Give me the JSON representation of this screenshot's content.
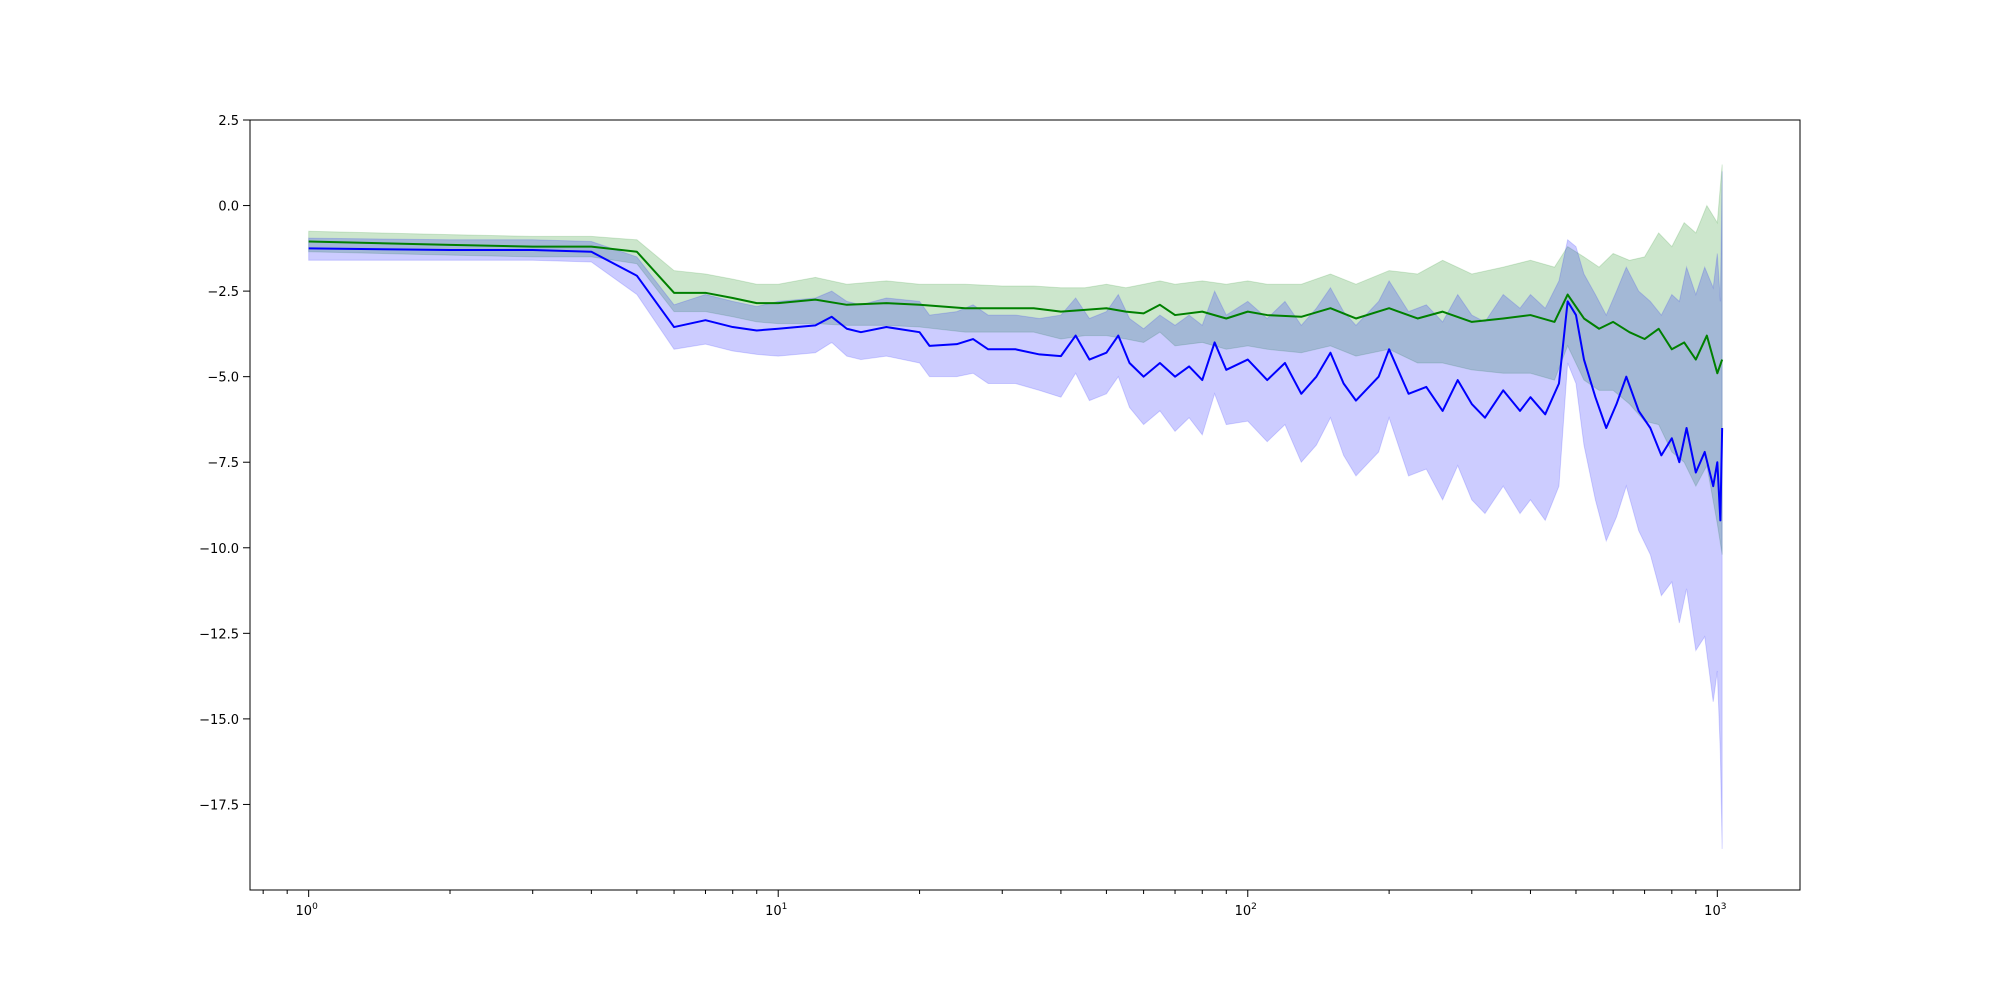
{
  "chart_data": {
    "type": "line",
    "title": "",
    "xlabel": "",
    "ylabel": "",
    "xscale": "log",
    "xlim": [
      0.75,
      1500
    ],
    "ylim": [
      -20,
      2.5
    ],
    "grid": false,
    "legend": "none",
    "x_ticks": [
      {
        "base": "10",
        "exp": "0",
        "value": 1
      },
      {
        "base": "10",
        "exp": "1",
        "value": 10
      },
      {
        "base": "10",
        "exp": "2",
        "value": 100
      },
      {
        "base": "10",
        "exp": "3",
        "value": 1000
      }
    ],
    "y_ticks": [
      {
        "label": "2.5",
        "value": 2.5
      },
      {
        "label": "0.0",
        "value": 0.0
      },
      {
        "label": "−2.5",
        "value": -2.5
      },
      {
        "label": "−5.0",
        "value": -5.0
      },
      {
        "label": "−7.5",
        "value": -7.5
      },
      {
        "label": "−10.0",
        "value": -10.0
      },
      {
        "label": "−12.5",
        "value": -12.5
      },
      {
        "label": "−15.0",
        "value": -15.0
      },
      {
        "label": "−17.5",
        "value": -17.5
      }
    ],
    "series": [
      {
        "color": "#008000",
        "band_color": "#008000",
        "band_opacity": 0.2,
        "points": [
          [
            1,
            -1.05,
            -0.75,
            -1.35
          ],
          [
            2,
            -1.15,
            -0.85,
            -1.45
          ],
          [
            3,
            -1.2,
            -0.9,
            -1.5
          ],
          [
            4,
            -1.2,
            -0.9,
            -1.5
          ],
          [
            5,
            -1.35,
            -1.0,
            -1.7
          ],
          [
            6,
            -2.55,
            -1.9,
            -3.1
          ],
          [
            7,
            -2.55,
            -2.0,
            -3.1
          ],
          [
            8,
            -2.7,
            -2.15,
            -3.25
          ],
          [
            9,
            -2.85,
            -2.3,
            -3.4
          ],
          [
            10,
            -2.85,
            -2.3,
            -3.45
          ],
          [
            12,
            -2.75,
            -2.1,
            -3.45
          ],
          [
            14,
            -2.9,
            -2.3,
            -3.5
          ],
          [
            17,
            -2.85,
            -2.2,
            -3.5
          ],
          [
            20,
            -2.9,
            -2.3,
            -3.55
          ],
          [
            25,
            -3.0,
            -2.3,
            -3.7
          ],
          [
            30,
            -3.0,
            -2.35,
            -3.7
          ],
          [
            35,
            -3.0,
            -2.35,
            -3.7
          ],
          [
            40,
            -3.1,
            -2.4,
            -3.9
          ],
          [
            45,
            -3.05,
            -2.4,
            -3.8
          ],
          [
            50,
            -3.0,
            -2.3,
            -3.8
          ],
          [
            55,
            -3.1,
            -2.4,
            -3.9
          ],
          [
            60,
            -3.15,
            -2.3,
            -4.0
          ],
          [
            65,
            -2.9,
            -2.2,
            -3.7
          ],
          [
            70,
            -3.2,
            -2.3,
            -4.1
          ],
          [
            80,
            -3.1,
            -2.2,
            -4.0
          ],
          [
            90,
            -3.3,
            -2.3,
            -4.2
          ],
          [
            100,
            -3.1,
            -2.2,
            -4.1
          ],
          [
            110,
            -3.2,
            -2.3,
            -4.2
          ],
          [
            130,
            -3.25,
            -2.3,
            -4.3
          ],
          [
            150,
            -3.0,
            -2.0,
            -4.1
          ],
          [
            170,
            -3.3,
            -2.3,
            -4.4
          ],
          [
            200,
            -3.0,
            -1.9,
            -4.2
          ],
          [
            230,
            -3.3,
            -2.0,
            -4.6
          ],
          [
            260,
            -3.1,
            -1.6,
            -4.6
          ],
          [
            300,
            -3.4,
            -2.0,
            -4.8
          ],
          [
            350,
            -3.3,
            -1.8,
            -4.9
          ],
          [
            400,
            -3.2,
            -1.6,
            -4.9
          ],
          [
            450,
            -3.4,
            -1.8,
            -5.1
          ],
          [
            480,
            -2.6,
            -1.2,
            -4.1
          ],
          [
            520,
            -3.3,
            -1.5,
            -5.1
          ],
          [
            560,
            -3.6,
            -1.8,
            -5.4
          ],
          [
            600,
            -3.4,
            -1.4,
            -5.4
          ],
          [
            650,
            -3.7,
            -1.6,
            -5.8
          ],
          [
            700,
            -3.9,
            -1.5,
            -6.3
          ],
          [
            750,
            -3.6,
            -0.8,
            -6.4
          ],
          [
            800,
            -4.2,
            -1.2,
            -7.2
          ],
          [
            850,
            -4.0,
            -0.5,
            -7.5
          ],
          [
            900,
            -4.5,
            -0.8,
            -8.2
          ],
          [
            950,
            -3.8,
            0.0,
            -7.6
          ],
          [
            1000,
            -4.9,
            -0.5,
            -9.3
          ],
          [
            1024,
            -4.5,
            1.2,
            -10.2
          ]
        ]
      },
      {
        "color": "#0000ff",
        "band_color": "#0000ff",
        "band_opacity": 0.2,
        "points": [
          [
            1,
            -1.25,
            -0.95,
            -1.6
          ],
          [
            2,
            -1.3,
            -1.0,
            -1.6
          ],
          [
            3,
            -1.3,
            -1.0,
            -1.6
          ],
          [
            4,
            -1.35,
            -1.05,
            -1.65
          ],
          [
            5,
            -2.05,
            -1.5,
            -2.6
          ],
          [
            6,
            -3.55,
            -2.9,
            -4.2
          ],
          [
            7,
            -3.35,
            -2.6,
            -4.05
          ],
          [
            8,
            -3.55,
            -2.8,
            -4.25
          ],
          [
            9,
            -3.65,
            -2.95,
            -4.35
          ],
          [
            10,
            -3.6,
            -2.8,
            -4.4
          ],
          [
            12,
            -3.5,
            -2.7,
            -4.3
          ],
          [
            13,
            -3.25,
            -2.5,
            -4.0
          ],
          [
            14,
            -3.6,
            -2.8,
            -4.4
          ],
          [
            15,
            -3.7,
            -2.9,
            -4.5
          ],
          [
            17,
            -3.55,
            -2.7,
            -4.4
          ],
          [
            20,
            -3.7,
            -2.8,
            -4.6
          ],
          [
            21,
            -4.1,
            -3.2,
            -5.0
          ],
          [
            24,
            -4.05,
            -3.1,
            -5.0
          ],
          [
            26,
            -3.9,
            -2.9,
            -4.9
          ],
          [
            28,
            -4.2,
            -3.2,
            -5.2
          ],
          [
            32,
            -4.2,
            -3.2,
            -5.2
          ],
          [
            36,
            -4.35,
            -3.3,
            -5.4
          ],
          [
            40,
            -4.4,
            -3.2,
            -5.6
          ],
          [
            43,
            -3.8,
            -2.7,
            -4.9
          ],
          [
            46,
            -4.5,
            -3.3,
            -5.7
          ],
          [
            50,
            -4.3,
            -3.1,
            -5.5
          ],
          [
            53,
            -3.8,
            -2.6,
            -5.0
          ],
          [
            56,
            -4.6,
            -3.3,
            -5.9
          ],
          [
            60,
            -5.0,
            -3.6,
            -6.4
          ],
          [
            65,
            -4.6,
            -3.2,
            -6.0
          ],
          [
            70,
            -5.0,
            -3.5,
            -6.6
          ],
          [
            75,
            -4.7,
            -3.2,
            -6.2
          ],
          [
            80,
            -5.1,
            -3.5,
            -6.7
          ],
          [
            85,
            -4.0,
            -2.5,
            -5.5
          ],
          [
            90,
            -4.8,
            -3.2,
            -6.4
          ],
          [
            100,
            -4.5,
            -2.8,
            -6.3
          ],
          [
            110,
            -5.1,
            -3.3,
            -6.9
          ],
          [
            120,
            -4.6,
            -2.8,
            -6.4
          ],
          [
            130,
            -5.5,
            -3.5,
            -7.5
          ],
          [
            140,
            -5.0,
            -3.0,
            -7.0
          ],
          [
            150,
            -4.3,
            -2.4,
            -6.2
          ],
          [
            160,
            -5.2,
            -3.1,
            -7.3
          ],
          [
            170,
            -5.7,
            -3.5,
            -7.9
          ],
          [
            190,
            -5.0,
            -2.8,
            -7.2
          ],
          [
            200,
            -4.2,
            -2.2,
            -6.2
          ],
          [
            220,
            -5.5,
            -3.1,
            -7.9
          ],
          [
            240,
            -5.3,
            -2.9,
            -7.7
          ],
          [
            260,
            -6.0,
            -3.4,
            -8.6
          ],
          [
            280,
            -5.1,
            -2.6,
            -7.6
          ],
          [
            300,
            -5.8,
            -3.2,
            -8.6
          ],
          [
            320,
            -6.2,
            -3.4,
            -9.0
          ],
          [
            350,
            -5.4,
            -2.6,
            -8.2
          ],
          [
            380,
            -6.0,
            -3.0,
            -9.0
          ],
          [
            400,
            -5.6,
            -2.6,
            -8.6
          ],
          [
            430,
            -6.1,
            -3.0,
            -9.2
          ],
          [
            460,
            -5.2,
            -2.2,
            -8.2
          ],
          [
            480,
            -2.8,
            -1.0,
            -4.6
          ],
          [
            500,
            -3.2,
            -1.2,
            -5.2
          ],
          [
            520,
            -4.5,
            -2.0,
            -7.0
          ],
          [
            550,
            -5.6,
            -2.6,
            -8.6
          ],
          [
            580,
            -6.5,
            -3.2,
            -9.8
          ],
          [
            610,
            -5.8,
            -2.5,
            -9.1
          ],
          [
            640,
            -5.0,
            -1.8,
            -8.2
          ],
          [
            680,
            -6.0,
            -2.5,
            -9.5
          ],
          [
            720,
            -6.5,
            -2.8,
            -10.2
          ],
          [
            760,
            -7.3,
            -3.2,
            -11.4
          ],
          [
            800,
            -6.8,
            -2.6,
            -11.0
          ],
          [
            830,
            -7.5,
            -2.8,
            -12.2
          ],
          [
            860,
            -6.5,
            -1.8,
            -11.2
          ],
          [
            900,
            -7.8,
            -2.6,
            -13.0
          ],
          [
            940,
            -7.2,
            -1.8,
            -12.6
          ],
          [
            980,
            -8.2,
            -2.4,
            -14.5
          ],
          [
            1000,
            -7.5,
            -1.4,
            -13.6
          ],
          [
            1015,
            -9.2,
            -2.8,
            -16.0
          ],
          [
            1024,
            -6.5,
            1.0,
            -18.8
          ]
        ]
      }
    ]
  }
}
